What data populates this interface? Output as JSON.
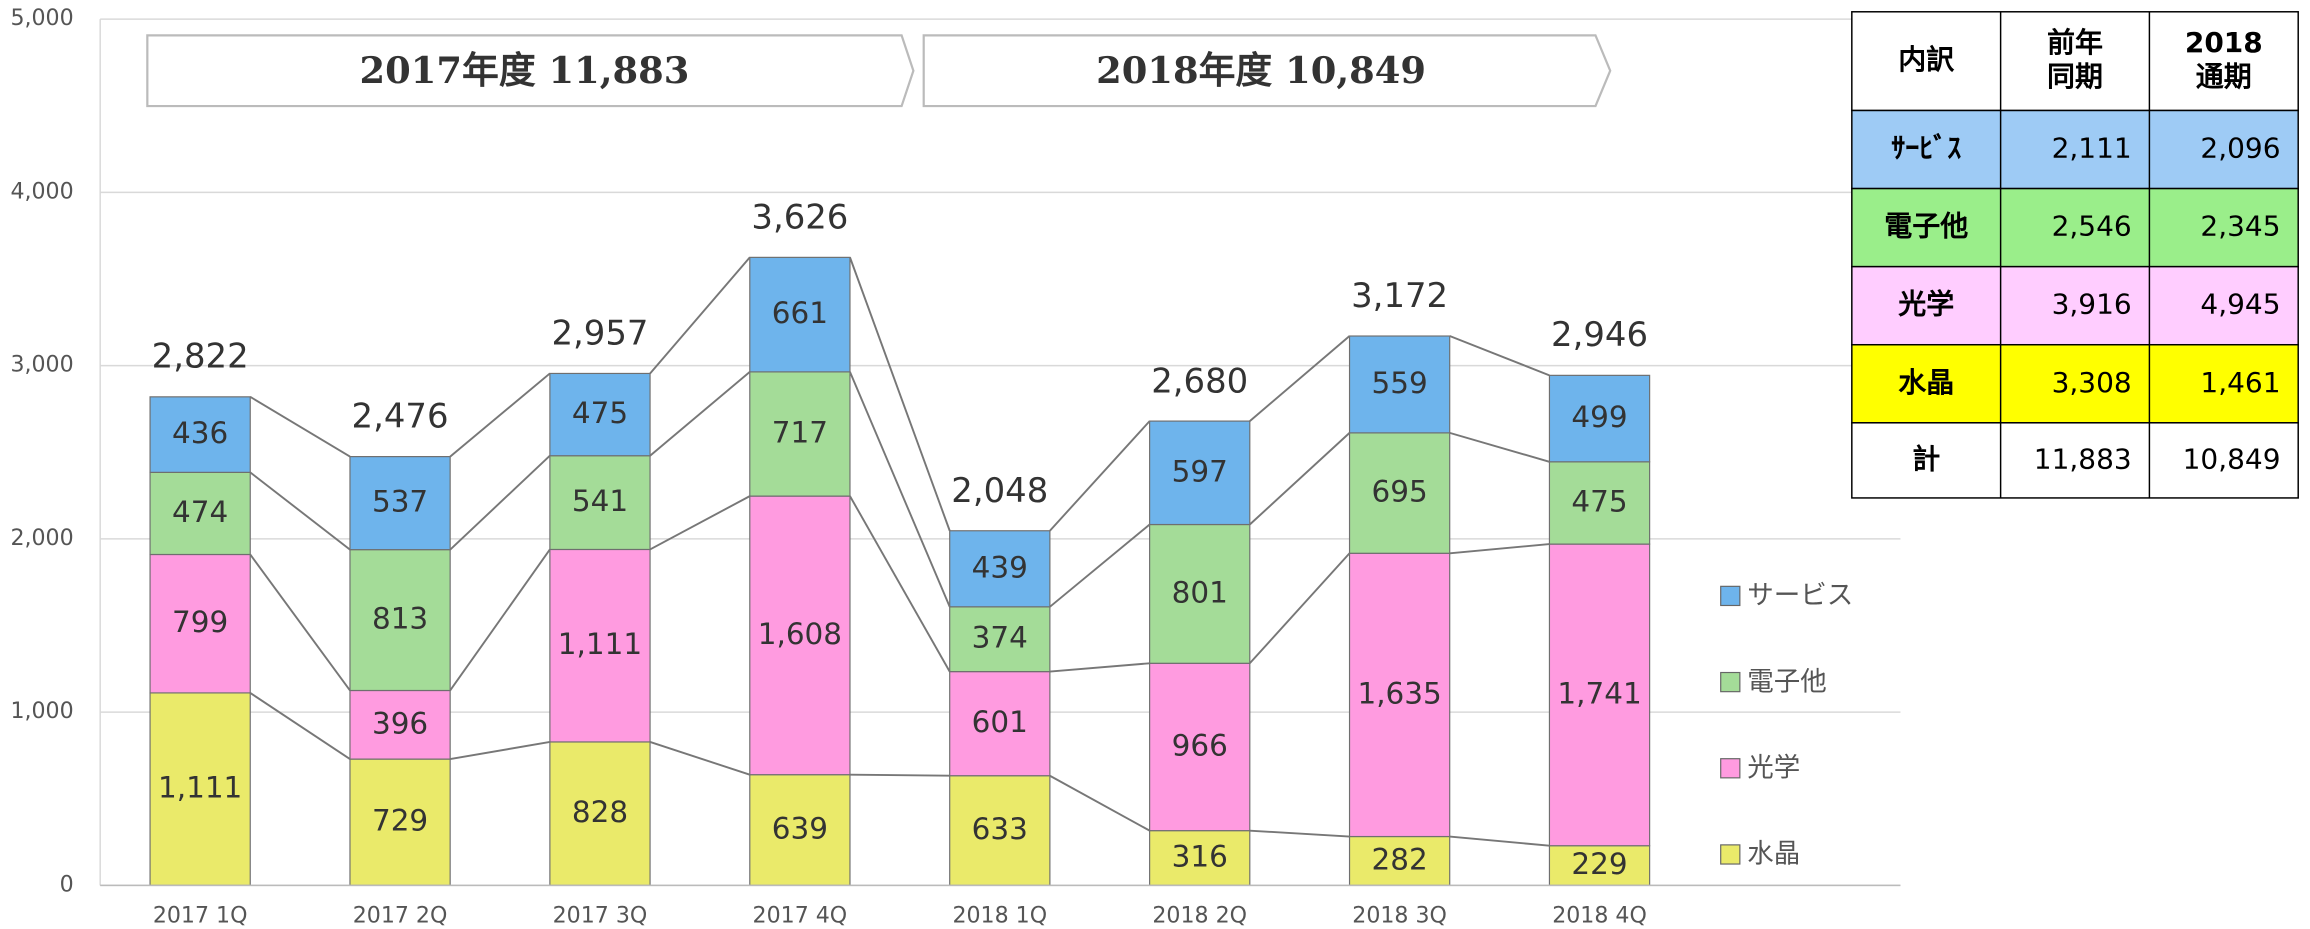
{
  "chart_data": {
    "type": "stacked_bar",
    "categories": [
      "2017 1Q",
      "2017 2Q",
      "2017 3Q",
      "2017 4Q",
      "2018 1Q",
      "2018 2Q",
      "2018 3Q",
      "2018 4Q"
    ],
    "series": [
      {
        "name": "水晶",
        "color": "#eaea6a",
        "values": [
          1111,
          729,
          828,
          639,
          633,
          316,
          282,
          229
        ],
        "value_labels": [
          "1,111",
          "729",
          "828",
          "639",
          "633",
          "316",
          "282",
          "229"
        ]
      },
      {
        "name": "光学",
        "color": "#ff9be0",
        "values": [
          799,
          396,
          1111,
          1608,
          601,
          966,
          1635,
          1741
        ],
        "value_labels": [
          "799",
          "396",
          "1,111",
          "1,608",
          "601",
          "966",
          "1,635",
          "1,741"
        ]
      },
      {
        "name": "電子他",
        "color": "#a4dc98",
        "values": [
          474,
          813,
          541,
          717,
          374,
          801,
          695,
          475
        ],
        "value_labels": [
          "474",
          "813",
          "541",
          "717",
          "374",
          "801",
          "695",
          "475"
        ]
      },
      {
        "name": "サービス",
        "color": "#6eb4ec",
        "values": [
          436,
          537,
          475,
          661,
          439,
          597,
          559,
          499
        ],
        "value_labels": [
          "436",
          "537",
          "475",
          "661",
          "439",
          "597",
          "559",
          "499"
        ]
      }
    ],
    "totals": [
      2822,
      2476,
      2957,
      3626,
      2048,
      2680,
      3172,
      2946
    ],
    "total_labels": [
      "2,822",
      "2,476",
      "2,957",
      "3,626",
      "2,048",
      "2,680",
      "3,172",
      "2,946"
    ],
    "annotations": [
      "2017年度  11,883",
      "2018年度  10,849"
    ],
    "ylim": [
      0,
      5000
    ],
    "yticks": [
      0,
      {
        "value": 1000,
        "label": "1,000"
      },
      {
        "value": 2000,
        "label": "2,000"
      },
      {
        "value": 3000,
        "label": "3,000"
      },
      {
        "value": 4000,
        "label": "4,000"
      },
      {
        "value": 5000,
        "label": "5,000"
      }
    ],
    "grid": true,
    "legend": "right"
  },
  "table": {
    "header": [
      [
        "内訳"
      ],
      [
        "前年",
        "同期"
      ],
      [
        "2018",
        "通期"
      ]
    ],
    "rows": [
      [
        "ｻｰﾋﾞｽ",
        "2,111",
        "2,096"
      ],
      [
        "電子他",
        "2,546",
        "2,345"
      ],
      [
        "光学",
        "3,916",
        "4,945"
      ],
      [
        "水晶",
        "3,308",
        "1,461"
      ],
      [
        "計",
        "11,883",
        "10,849"
      ]
    ]
  }
}
